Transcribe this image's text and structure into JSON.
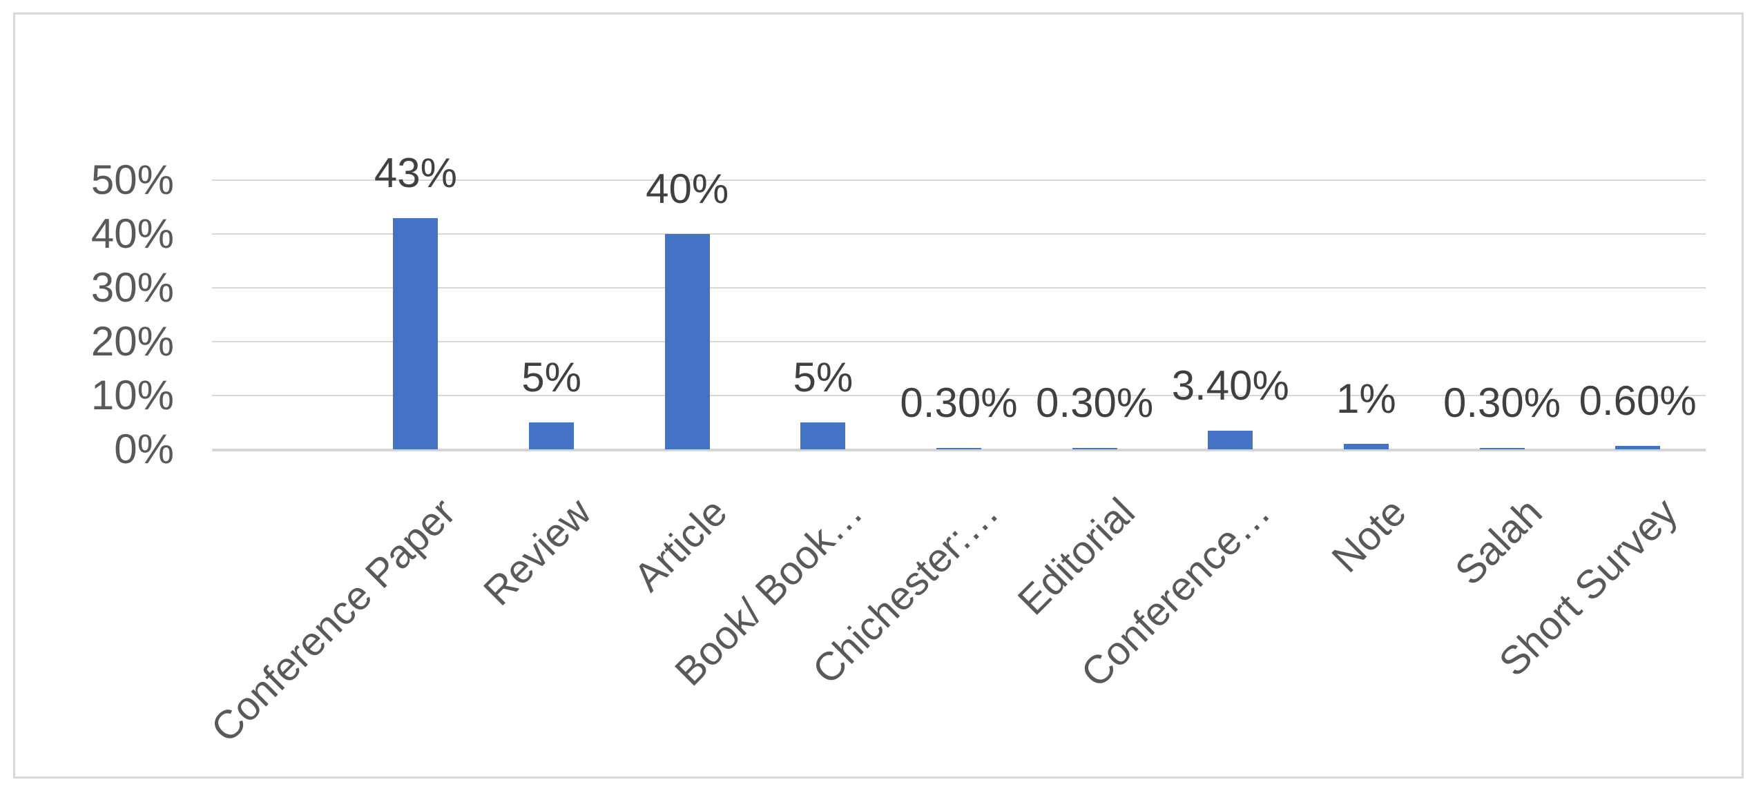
{
  "chart_data": {
    "type": "bar",
    "title": "",
    "xlabel": "",
    "ylabel": "",
    "categories": [
      "Conference Paper",
      "Review",
      "Article",
      "Book/ Book…",
      "Chichester:…",
      "Editorial",
      "Conference…",
      "Note",
      "Salah",
      "Short Survey"
    ],
    "values": [
      43,
      5,
      40,
      5,
      0.3,
      0.3,
      3.4,
      1,
      0.3,
      0.6
    ],
    "value_labels": [
      "43%",
      "5%",
      "40%",
      "5%",
      "0.30%",
      "0.30%",
      "3.40%",
      "1%",
      "0.30%",
      "0.60%"
    ],
    "y_ticks": [
      {
        "label": "50%",
        "value": 50
      },
      {
        "label": "40%",
        "value": 40
      },
      {
        "label": "30%",
        "value": 30
      },
      {
        "label": "20%",
        "value": 20
      },
      {
        "label": "10%",
        "value": 10
      },
      {
        "label": "0%",
        "value": 0
      }
    ],
    "ylim": [
      0,
      50
    ],
    "grid": true,
    "legend": false,
    "bar_color": "#4472C4",
    "gridline_color": "#D9D9D9",
    "border_color": "#D9D9D9",
    "value_label_color": "#404040",
    "axis_text_color": "#595959"
  }
}
